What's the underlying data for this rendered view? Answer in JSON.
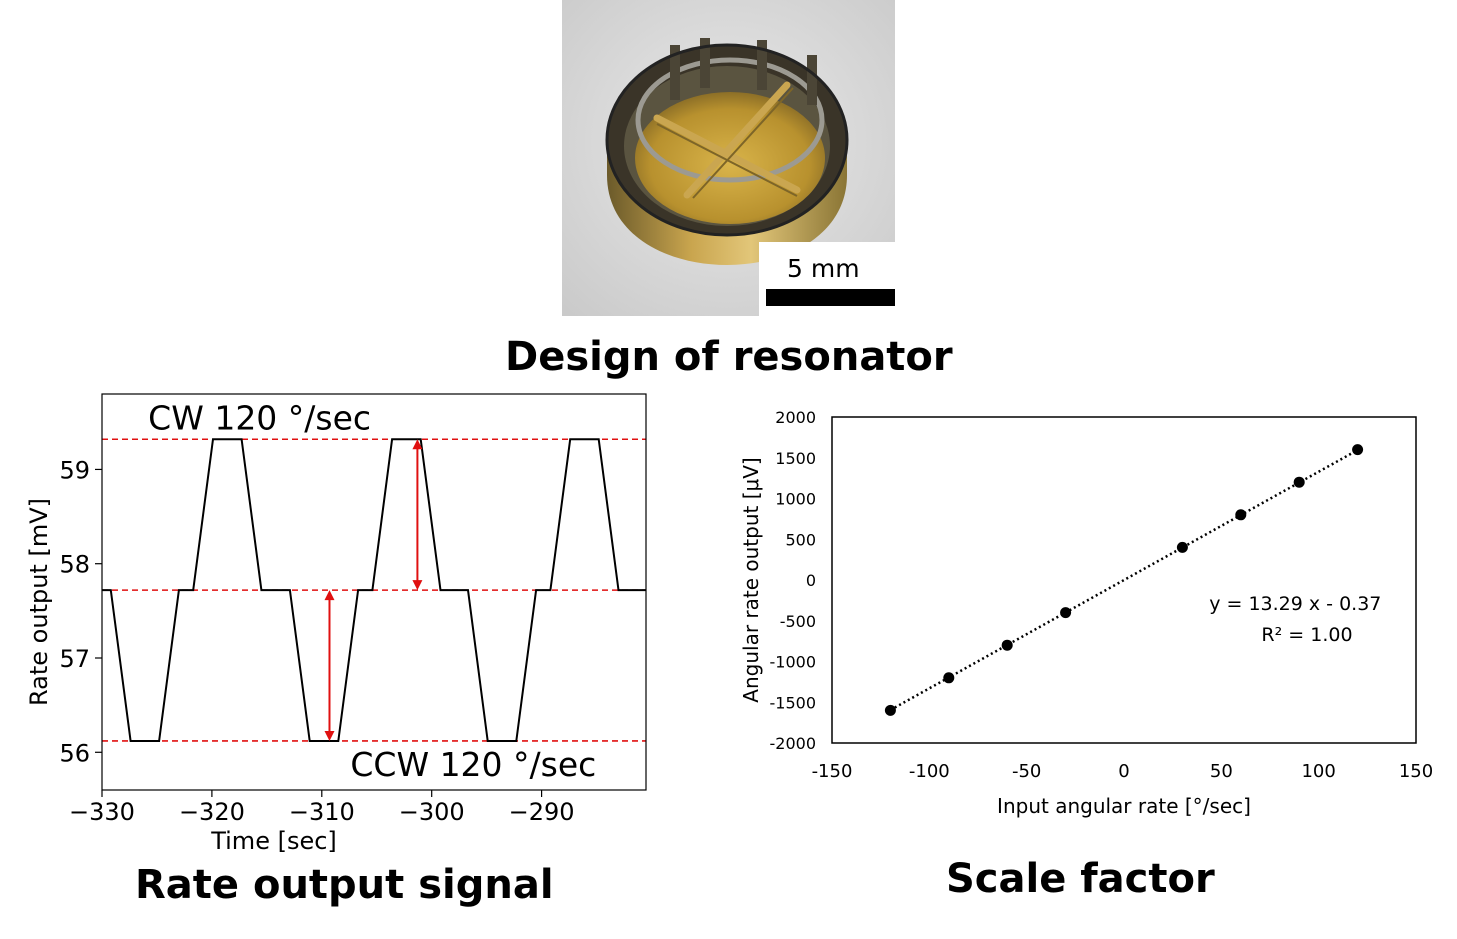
{
  "photo": {
    "scale_label": "5 mm"
  },
  "headings": {
    "design": "Design of resonator",
    "rate": "Rate output signal",
    "scale": "Scale factor"
  },
  "chart_data": [
    {
      "type": "line",
      "title": "",
      "xlabel": "Time [sec]",
      "ylabel": "Rate output [mV]",
      "xlim": [
        -330,
        -280.5
      ],
      "ylim": [
        55.6,
        59.8
      ],
      "xticks": [
        -330,
        -320,
        -310,
        -300,
        -290
      ],
      "xtick_labels": [
        "−330",
        "−320",
        "−310",
        "−300",
        "−290"
      ],
      "yticks": [
        56,
        57,
        58,
        59
      ],
      "ytick_labels": [
        "56",
        "57",
        "58",
        "59"
      ],
      "reference_lines": [
        59.32,
        57.72,
        56.12
      ],
      "annotations": [
        {
          "text": "CW 120 °/sec"
        },
        {
          "text": "CCW 120 °/sec"
        }
      ],
      "arrows": [
        {
          "x": -301.3,
          "y_from": 57.72,
          "y_to": 59.32
        },
        {
          "x": -309.3,
          "y_from": 57.72,
          "y_to": 56.12
        }
      ],
      "series": [
        {
          "x": [
            -330,
            -329.2,
            -327.4,
            -324.8,
            -323.0,
            -321.7,
            -319.9,
            -317.3,
            -315.5,
            -312.9,
            -311.1,
            -308.5,
            -306.7,
            -305.4,
            -303.6,
            -301.0,
            -299.2,
            -296.7,
            -294.9,
            -292.3,
            -290.5,
            -289.2,
            -287.4,
            -284.8,
            -283.0,
            -280.5
          ],
          "y": [
            57.72,
            57.72,
            56.12,
            56.12,
            57.72,
            57.72,
            59.32,
            59.32,
            57.72,
            57.72,
            56.12,
            56.12,
            57.72,
            57.72,
            59.32,
            59.32,
            57.72,
            57.72,
            56.12,
            56.12,
            57.72,
            57.72,
            59.32,
            59.32,
            57.72,
            57.72
          ]
        }
      ]
    },
    {
      "type": "scatter",
      "title": "",
      "xlabel": "Input angular rate [°/sec]",
      "ylabel": "Angular rate output [μV]",
      "xlim": [
        -150,
        150
      ],
      "ylim": [
        -2000,
        2000
      ],
      "xticks": [
        -150,
        -100,
        -50,
        0,
        50,
        100,
        150
      ],
      "xtick_labels": [
        "-150",
        "-100",
        "-50",
        "0",
        "50",
        "100",
        "150"
      ],
      "yticks": [
        -2000,
        -1500,
        -1000,
        -500,
        0,
        500,
        1000,
        1500,
        2000
      ],
      "ytick_labels": [
        "-2000",
        "-1500",
        "-1000",
        "-500",
        "0",
        "500",
        "1000",
        "1500",
        "2000"
      ],
      "series": [
        {
          "x": [
            -120,
            -90,
            -60,
            -30,
            30,
            60,
            90,
            120
          ],
          "y": [
            -1600,
            -1200,
            -800,
            -400,
            400,
            800,
            1200,
            1600
          ]
        }
      ],
      "trendline": {
        "slope": 13.29,
        "intercept": -0.37,
        "x_range": [
          -120,
          120
        ]
      },
      "equation_text": "y = 13.29 x - 0.37",
      "r2_text": "R² = 1.00"
    }
  ]
}
